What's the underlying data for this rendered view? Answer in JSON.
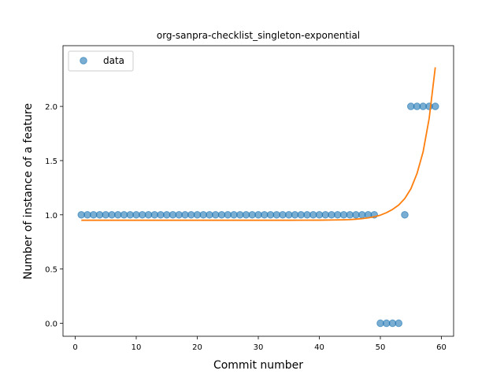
{
  "chart_data": {
    "type": "scatter",
    "title": "org-sanpra-checklist_singleton-exponential",
    "xlabel": "Commit number",
    "ylabel": "Number of instance of a feature",
    "xlim": [
      -2.0,
      62.0
    ],
    "ylim": [
      -0.12,
      2.56
    ],
    "xticks": [
      0,
      10,
      20,
      30,
      40,
      50,
      60
    ],
    "yticks": [
      0.0,
      0.5,
      1.0,
      1.5,
      2.0
    ],
    "xtick_labels": [
      "0",
      "10",
      "20",
      "30",
      "40",
      "50",
      "60"
    ],
    "ytick_labels": [
      "0.0",
      "0.5",
      "1.0",
      "1.5",
      "2.0"
    ],
    "legend": {
      "placement": "upper-left",
      "entries": [
        "data"
      ]
    },
    "grid": false,
    "series": [
      {
        "name": "data",
        "kind": "markers",
        "color": "#1f77b4",
        "x": [
          1,
          2,
          3,
          4,
          5,
          6,
          7,
          8,
          9,
          10,
          11,
          12,
          13,
          14,
          15,
          16,
          17,
          18,
          19,
          20,
          21,
          22,
          23,
          24,
          25,
          26,
          27,
          28,
          29,
          30,
          31,
          32,
          33,
          34,
          35,
          36,
          37,
          38,
          39,
          40,
          41,
          42,
          43,
          44,
          45,
          46,
          47,
          48,
          49,
          50,
          51,
          52,
          53,
          54,
          55,
          56,
          57,
          58,
          59
        ],
        "y": [
          1,
          1,
          1,
          1,
          1,
          1,
          1,
          1,
          1,
          1,
          1,
          1,
          1,
          1,
          1,
          1,
          1,
          1,
          1,
          1,
          1,
          1,
          1,
          1,
          1,
          1,
          1,
          1,
          1,
          1,
          1,
          1,
          1,
          1,
          1,
          1,
          1,
          1,
          1,
          1,
          1,
          1,
          1,
          1,
          1,
          1,
          1,
          1,
          1,
          0,
          0,
          0,
          0,
          1,
          2,
          2,
          2,
          2,
          2
        ]
      },
      {
        "kind": "line",
        "color": "#ff7f0e",
        "x": [
          1,
          5,
          10,
          15,
          20,
          25,
          30,
          35,
          40,
          42,
          44,
          45,
          46,
          47,
          48,
          49,
          50,
          51,
          52,
          53,
          54,
          55,
          56,
          57,
          58,
          59
        ],
        "y": [
          0.95,
          0.95,
          0.95,
          0.95,
          0.95,
          0.95,
          0.95,
          0.95,
          0.951,
          0.952,
          0.954,
          0.956,
          0.96,
          0.965,
          0.972,
          0.982,
          0.997,
          1.02,
          1.05,
          1.09,
          1.15,
          1.24,
          1.38,
          1.58,
          1.89,
          2.36
        ]
      }
    ]
  }
}
